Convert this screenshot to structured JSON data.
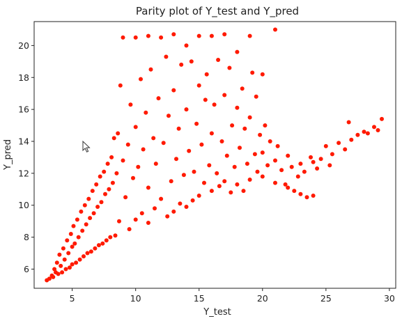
{
  "chart_data": {
    "type": "scatter",
    "title": "Parity plot of Y_test and Y_pred",
    "xlabel": "Y_test",
    "ylabel": "Y_pred",
    "xlim": [
      2,
      30.5
    ],
    "ylim": [
      4.8,
      21.5
    ],
    "xticks": [
      5,
      10,
      15,
      20,
      25,
      30
    ],
    "yticks": [
      6,
      8,
      10,
      12,
      14,
      16,
      18,
      20
    ],
    "grid": false,
    "point_color": "#ff1a00",
    "series": [
      {
        "points": [
          [
            3,
            5.3
          ],
          [
            3.2,
            5.4
          ],
          [
            3.4,
            5.6
          ],
          [
            3.5,
            5.5
          ],
          [
            3.6,
            6.0
          ],
          [
            3.7,
            5.8
          ],
          [
            3.8,
            6.4
          ],
          [
            3.9,
            5.7
          ],
          [
            4,
            6.9
          ],
          [
            4.1,
            6.2
          ],
          [
            4.2,
            5.8
          ],
          [
            4.3,
            7.3
          ],
          [
            4.4,
            6.6
          ],
          [
            4.5,
            6.0
          ],
          [
            4.6,
            7.8
          ],
          [
            4.7,
            7.0
          ],
          [
            4.8,
            6.1
          ],
          [
            4.9,
            8.2
          ],
          [
            5,
            7.4
          ],
          [
            5,
            6.3
          ],
          [
            5.1,
            8.7
          ],
          [
            5.2,
            7.6
          ],
          [
            5.3,
            6.4
          ],
          [
            5.4,
            9.1
          ],
          [
            5.5,
            8.0
          ],
          [
            5.6,
            6.6
          ],
          [
            5.7,
            9.6
          ],
          [
            5.8,
            8.4
          ],
          [
            5.9,
            6.8
          ],
          [
            6,
            10.0
          ],
          [
            6.1,
            8.8
          ],
          [
            6.2,
            7.0
          ],
          [
            6.3,
            10.4
          ],
          [
            6.4,
            9.2
          ],
          [
            6.5,
            7.1
          ],
          [
            6.6,
            10.9
          ],
          [
            6.7,
            9.5
          ],
          [
            6.8,
            7.3
          ],
          [
            6.9,
            11.3
          ],
          [
            7,
            9.9
          ],
          [
            7.1,
            7.5
          ],
          [
            7.2,
            11.8
          ],
          [
            7.3,
            10.2
          ],
          [
            7.4,
            7.6
          ],
          [
            7.5,
            12.1
          ],
          [
            7.6,
            10.7
          ],
          [
            7.7,
            7.8
          ],
          [
            7.8,
            12.6
          ],
          [
            7.9,
            11.0
          ],
          [
            8,
            8.0
          ],
          [
            8.1,
            13.0
          ],
          [
            8.2,
            11.4
          ],
          [
            8.3,
            14.2
          ],
          [
            8.4,
            8.1
          ],
          [
            8.5,
            12.0
          ],
          [
            8.6,
            14.5
          ],
          [
            8.7,
            9.0
          ],
          [
            8.8,
            17.5
          ],
          [
            9,
            20.5
          ],
          [
            9,
            12.8
          ],
          [
            9.2,
            10.5
          ],
          [
            9.4,
            13.8
          ],
          [
            9.5,
            8.5
          ],
          [
            9.6,
            16.3
          ],
          [
            9.8,
            11.7
          ],
          [
            10,
            20.5
          ],
          [
            10,
            14.9
          ],
          [
            10,
            9.1
          ],
          [
            10.2,
            12.4
          ],
          [
            10.4,
            17.9
          ],
          [
            10.5,
            9.5
          ],
          [
            10.6,
            13.5
          ],
          [
            10.8,
            15.8
          ],
          [
            11,
            20.6
          ],
          [
            11,
            11.1
          ],
          [
            11,
            8.9
          ],
          [
            11.2,
            18.5
          ],
          [
            11.4,
            14.2
          ],
          [
            11.5,
            9.8
          ],
          [
            11.6,
            12.6
          ],
          [
            11.8,
            16.7
          ],
          [
            12,
            20.5
          ],
          [
            12,
            10.4
          ],
          [
            12.2,
            13.9
          ],
          [
            12.4,
            19.3
          ],
          [
            12.5,
            9.3
          ],
          [
            12.6,
            15.6
          ],
          [
            12.8,
            11.5
          ],
          [
            13,
            20.7
          ],
          [
            13,
            17.2
          ],
          [
            13,
            9.6
          ],
          [
            13.2,
            12.9
          ],
          [
            13.4,
            14.8
          ],
          [
            13.5,
            10.1
          ],
          [
            13.6,
            18.8
          ],
          [
            13.8,
            11.9
          ],
          [
            14,
            20.0
          ],
          [
            14,
            16.0
          ],
          [
            14,
            9.9
          ],
          [
            14.2,
            13.4
          ],
          [
            14.4,
            19.0
          ],
          [
            14.5,
            10.3
          ],
          [
            14.6,
            12.1
          ],
          [
            14.8,
            15.1
          ],
          [
            15,
            20.6
          ],
          [
            15,
            17.5
          ],
          [
            15,
            10.6
          ],
          [
            15.2,
            13.8
          ],
          [
            15.4,
            11.4
          ],
          [
            15.5,
            16.6
          ],
          [
            15.6,
            18.2
          ],
          [
            15.8,
            12.5
          ],
          [
            16,
            20.6
          ],
          [
            16,
            14.5
          ],
          [
            16,
            10.9
          ],
          [
            16.2,
            16.3
          ],
          [
            16.4,
            12.0
          ],
          [
            16.5,
            19.1
          ],
          [
            16.6,
            11.2
          ],
          [
            16.8,
            14.0
          ],
          [
            17,
            20.7
          ],
          [
            17,
            16.9
          ],
          [
            17,
            11.5
          ],
          [
            17.2,
            13.1
          ],
          [
            17.4,
            18.6
          ],
          [
            17.5,
            10.8
          ],
          [
            17.6,
            15.0
          ],
          [
            17.8,
            12.4
          ],
          [
            18,
            19.6
          ],
          [
            18,
            16.1
          ],
          [
            18,
            11.3
          ],
          [
            18.2,
            13.6
          ],
          [
            18.4,
            17.3
          ],
          [
            18.5,
            10.9
          ],
          [
            18.6,
            14.8
          ],
          [
            18.8,
            12.6
          ],
          [
            19,
            20.6
          ],
          [
            19,
            15.5
          ],
          [
            19,
            11.6
          ],
          [
            19.2,
            18.3
          ],
          [
            19.4,
            13.2
          ],
          [
            19.5,
            16.8
          ],
          [
            19.6,
            12.1
          ],
          [
            19.8,
            14.4
          ],
          [
            20,
            18.2
          ],
          [
            20,
            13.3
          ],
          [
            20,
            11.8
          ],
          [
            20.2,
            15.0
          ],
          [
            20.4,
            12.5
          ],
          [
            20.6,
            14.0
          ],
          [
            21,
            21.0
          ],
          [
            21,
            12.8
          ],
          [
            21,
            11.4
          ],
          [
            21.2,
            13.7
          ],
          [
            21.5,
            12.2
          ],
          [
            21.8,
            11.3
          ],
          [
            22,
            13.1
          ],
          [
            22,
            11.1
          ],
          [
            22.3,
            12.4
          ],
          [
            22.5,
            10.9
          ],
          [
            22.8,
            11.8
          ],
          [
            23,
            12.6
          ],
          [
            23,
            10.7
          ],
          [
            23.3,
            12.1
          ],
          [
            23.5,
            10.5
          ],
          [
            23.8,
            13.0
          ],
          [
            24,
            10.6
          ],
          [
            24,
            12.7
          ],
          [
            24.3,
            12.3
          ],
          [
            24.6,
            12.9
          ],
          [
            25,
            13.7
          ],
          [
            25.3,
            12.5
          ],
          [
            25.5,
            13.2
          ],
          [
            26,
            13.9
          ],
          [
            26.5,
            13.5
          ],
          [
            26.8,
            15.2
          ],
          [
            27,
            14.1
          ],
          [
            27.5,
            14.4
          ],
          [
            28,
            14.6
          ],
          [
            28.3,
            14.5
          ],
          [
            28.8,
            14.9
          ],
          [
            29.1,
            14.7
          ],
          [
            29.4,
            15.4
          ]
        ]
      }
    ]
  }
}
